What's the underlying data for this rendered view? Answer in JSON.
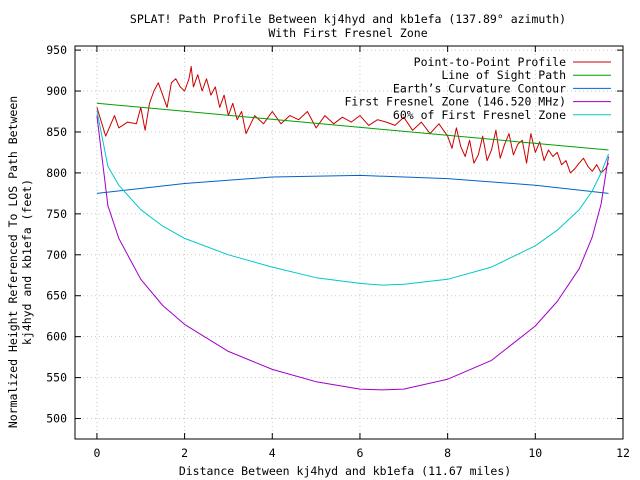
{
  "chart_data": {
    "type": "line",
    "title": "SPLAT! Path Profile Between kj4hyd and kb1efa (137.89° azimuth)",
    "subtitle": "With First Fresnel Zone",
    "xlabel": "Distance Between kj4hyd and kb1efa (11.67 miles)",
    "ylabel_line1": "Normalized Height Referenced To LOS Path Between",
    "ylabel_line2": "kj4hyd and kb1efa (feet)",
    "xlim": [
      -0.5,
      12
    ],
    "ylim": [
      475,
      955
    ],
    "x_ticks": [
      0,
      2,
      4,
      6,
      8,
      10,
      12
    ],
    "y_ticks": [
      500,
      550,
      600,
      650,
      700,
      750,
      800,
      850,
      900,
      950
    ],
    "grid": true,
    "legend_position": "top-right",
    "series": [
      {
        "name": "Point-to-Point Profile",
        "color": "#cc0000",
        "x": [
          0.0,
          0.2,
          0.4,
          0.5,
          0.7,
          0.9,
          1.0,
          1.1,
          1.2,
          1.3,
          1.4,
          1.5,
          1.6,
          1.7,
          1.8,
          1.9,
          2.0,
          2.1,
          2.15,
          2.2,
          2.3,
          2.4,
          2.5,
          2.6,
          2.7,
          2.8,
          2.9,
          3.0,
          3.1,
          3.2,
          3.3,
          3.4,
          3.6,
          3.8,
          4.0,
          4.2,
          4.4,
          4.6,
          4.8,
          5.0,
          5.2,
          5.4,
          5.6,
          5.8,
          6.0,
          6.2,
          6.4,
          6.6,
          6.8,
          7.0,
          7.2,
          7.4,
          7.6,
          7.8,
          8.0,
          8.1,
          8.2,
          8.3,
          8.4,
          8.5,
          8.6,
          8.7,
          8.8,
          8.9,
          9.0,
          9.1,
          9.2,
          9.3,
          9.4,
          9.5,
          9.6,
          9.7,
          9.8,
          9.9,
          10.0,
          10.1,
          10.2,
          10.3,
          10.4,
          10.5,
          10.6,
          10.7,
          10.8,
          10.9,
          11.0,
          11.1,
          11.2,
          11.3,
          11.4,
          11.5,
          11.6,
          11.67
        ],
        "y": [
          880,
          845,
          870,
          855,
          862,
          860,
          880,
          852,
          885,
          900,
          910,
          895,
          880,
          910,
          915,
          905,
          900,
          915,
          930,
          905,
          920,
          900,
          915,
          895,
          905,
          880,
          895,
          870,
          885,
          865,
          875,
          848,
          870,
          860,
          875,
          860,
          870,
          865,
          875,
          855,
          870,
          860,
          868,
          862,
          870,
          858,
          865,
          862,
          858,
          868,
          852,
          862,
          848,
          860,
          845,
          830,
          855,
          832,
          820,
          840,
          812,
          822,
          845,
          815,
          828,
          852,
          818,
          835,
          848,
          822,
          835,
          840,
          812,
          848,
          825,
          838,
          815,
          828,
          820,
          825,
          810,
          815,
          800,
          805,
          812,
          818,
          808,
          802,
          810,
          800,
          805,
          812
        ]
      },
      {
        "name": "Line of Sight Path",
        "color": "#00a000",
        "x": [
          0,
          11.67
        ],
        "y": [
          885,
          828
        ]
      },
      {
        "name": "Earth’s Curvature Contour",
        "color": "#0064c8",
        "x": [
          0,
          2,
          4,
          6,
          8,
          10,
          11.67
        ],
        "y": [
          775,
          787,
          795,
          797,
          793,
          785,
          775
        ]
      },
      {
        "name": "First Fresnel Zone (146.520 MHz)",
        "color": "#a000c8",
        "x": [
          0,
          0.25,
          0.5,
          1,
          1.5,
          2,
          3,
          4,
          5,
          6,
          6.5,
          7,
          8,
          9,
          10,
          10.5,
          11,
          11.3,
          11.5,
          11.67
        ],
        "y": [
          870,
          760,
          720,
          670,
          638,
          615,
          582,
          560,
          545,
          536,
          535,
          536,
          548,
          571,
          613,
          643,
          683,
          722,
          762,
          820
        ]
      },
      {
        "name": "60% of First Fresnel Zone",
        "color": "#00c8c8",
        "x": [
          0,
          0.25,
          0.5,
          1,
          1.5,
          2,
          3,
          4,
          5,
          6,
          6.5,
          7,
          8,
          9,
          10,
          10.5,
          11,
          11.3,
          11.5,
          11.67
        ],
        "y": [
          876,
          808,
          785,
          755,
          735,
          720,
          700,
          685,
          672,
          665,
          663,
          664,
          670,
          685,
          711,
          730,
          755,
          778,
          800,
          823
        ]
      }
    ]
  }
}
